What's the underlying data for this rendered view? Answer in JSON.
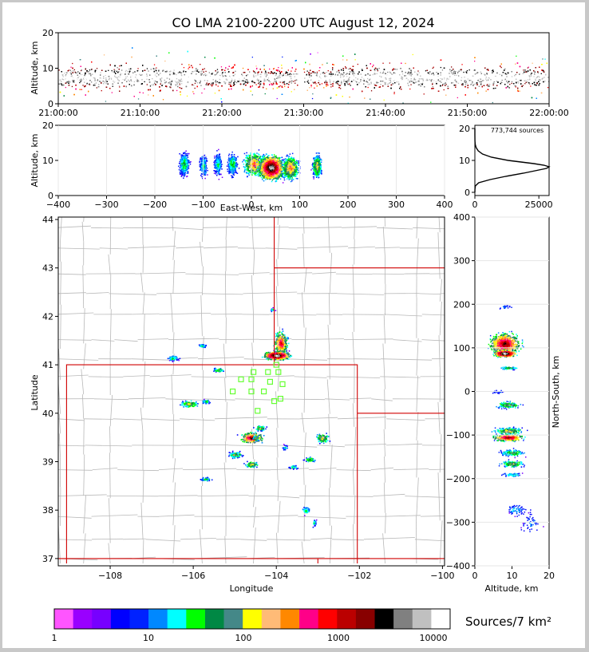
{
  "title": "CO LMA 2100-2200 UTC August 12, 2024",
  "colors": {
    "frame": "#c8c8c8",
    "red_boundary": "#d00000",
    "county_lines": "#b8b8b8",
    "stations": "#66ff33"
  },
  "chart_data": [
    {
      "id": "time_height",
      "type": "heatmap",
      "ylabel": "Altitude, km",
      "ylim": [
        0,
        20
      ],
      "yticks": [
        "0",
        "10",
        "20"
      ],
      "xticks": [
        "21:00:00",
        "21:10:00",
        "21:20:00",
        "21:30:00",
        "21:40:00",
        "21:50:00",
        "22:00:00"
      ],
      "xlim_minutes": [
        0,
        60
      ],
      "gap_minutes": [
        29.2,
        29.9
      ]
    },
    {
      "id": "ew_altitude",
      "type": "heatmap",
      "xlabel": "East-West, km",
      "ylabel": "Altitude, km",
      "xlim": [
        -400,
        400
      ],
      "ylim": [
        0,
        20
      ],
      "xticks": [
        "−400",
        "−300",
        "−200",
        "−100",
        "0",
        "100",
        "200",
        "300",
        "400"
      ],
      "yticks": [
        "0",
        "10",
        "20"
      ]
    },
    {
      "id": "altitude_histogram",
      "type": "line",
      "annotation": "773,744 sources",
      "xlim": [
        0,
        29000
      ],
      "ylim": [
        -1,
        21
      ],
      "xticks": [
        "0",
        "25000"
      ],
      "yticks": [
        "0",
        "10",
        "20"
      ],
      "profile": {
        "altitude_km": [
          0,
          1,
          2,
          3,
          4,
          5,
          6,
          7,
          7.5,
          8,
          8.5,
          9,
          10,
          11,
          12,
          13,
          14,
          15,
          16,
          18,
          20
        ],
        "sources": [
          0,
          20,
          200,
          1500,
          6000,
          12000,
          19000,
          25000,
          28000,
          29000,
          27000,
          23000,
          13000,
          6500,
          3000,
          1300,
          500,
          150,
          40,
          5,
          0
        ]
      }
    },
    {
      "id": "plan_view",
      "type": "heatmap",
      "xlabel": "Longitude",
      "ylabel": "Latitude",
      "xlim": [
        -109.25,
        -99.95
      ],
      "ylim": [
        36.85,
        44.05
      ],
      "xticks": [
        "−108",
        "−106",
        "−104",
        "−102",
        "−100"
      ],
      "yticks": [
        "37",
        "38",
        "39",
        "40",
        "41",
        "42",
        "43",
        "44"
      ]
    },
    {
      "id": "ns_altitude",
      "type": "heatmap",
      "xlabel": "Altitude, km",
      "ylabel": "North-South, km",
      "xlim": [
        0,
        20
      ],
      "ylim": [
        -400,
        400
      ],
      "xticks": [
        "0",
        "10",
        "20"
      ],
      "yticks": [
        "−400",
        "−300",
        "−200",
        "−100",
        "0",
        "100",
        "200",
        "300",
        "400"
      ]
    }
  ],
  "colorbar": {
    "label": "Sources/7 km²",
    "ticks": [
      "1",
      "10",
      "100",
      "1000",
      "10000"
    ],
    "colors": [
      "#ff55ff",
      "#9900ff",
      "#7700ff",
      "#0000ff",
      "#0022ff",
      "#0088ff",
      "#00ffff",
      "#00ff00",
      "#008844",
      "#448888",
      "#ffff00",
      "#ffbb77",
      "#ff8800",
      "#ff0088",
      "#ff0000",
      "#bb0000",
      "#880000",
      "#000000",
      "#808080",
      "#c0c0c0",
      "#ffffff"
    ]
  }
}
